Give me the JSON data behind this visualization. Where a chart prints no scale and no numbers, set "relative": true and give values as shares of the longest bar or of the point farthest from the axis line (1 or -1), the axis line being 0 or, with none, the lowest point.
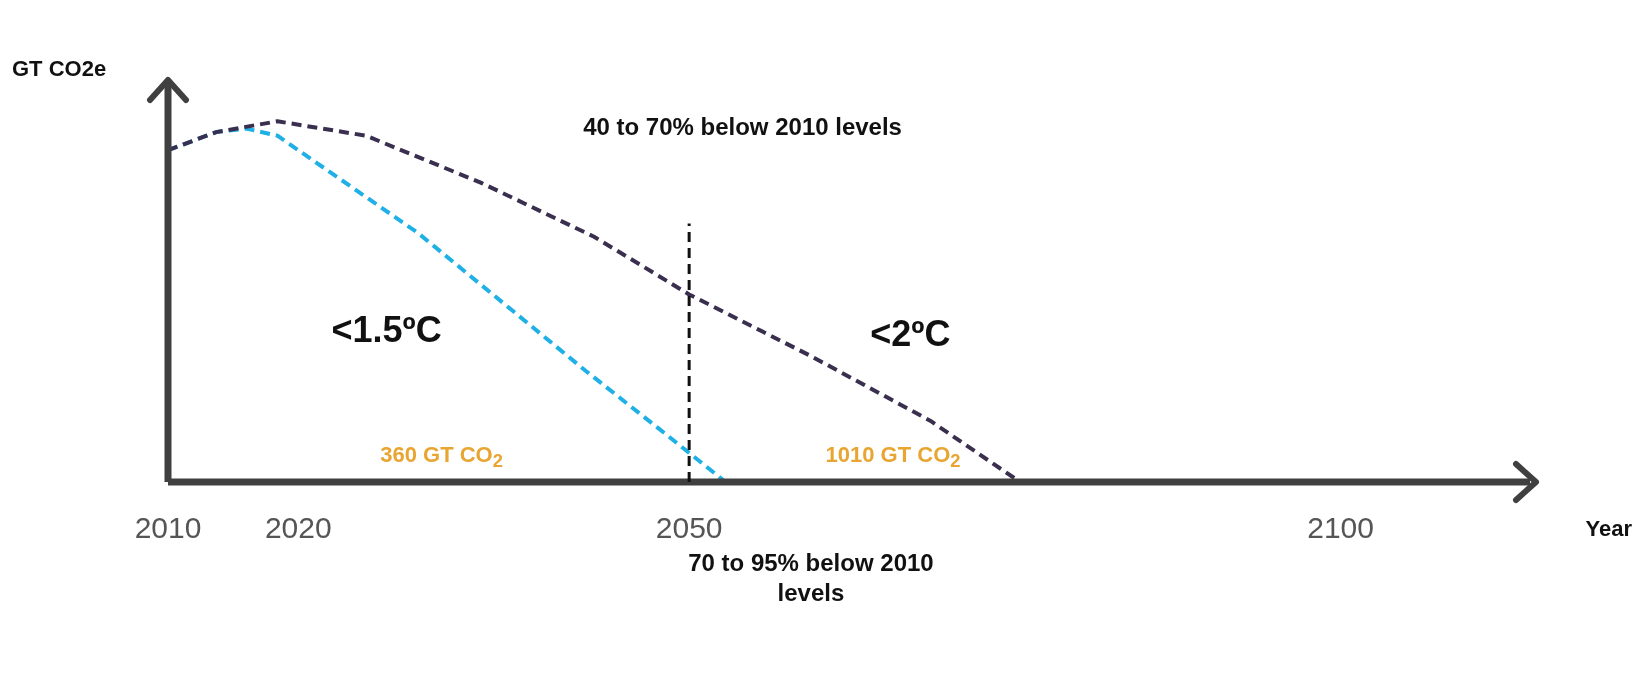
{
  "chart_data": {
    "type": "line",
    "relative": true,
    "xlabel": "Year",
    "ylabel": "GT CO2e",
    "x": [
      2010,
      2013.7,
      2018.4,
      2025.2,
      2034,
      2042.7,
      2050,
      2059.3,
      2068.5,
      2075.4
    ],
    "xlim": [
      2010,
      2115
    ],
    "xticks": [
      2010,
      2020,
      2050,
      2100
    ],
    "tick_labels": "x",
    "grid": false,
    "legend": false,
    "marker": "none",
    "line_style": "dashed",
    "series": [
      {
        "name": "<2ºC",
        "color": "#3a2f4f",
        "values": [
          0.92,
          0.97,
          1.0,
          0.96,
          0.83,
          0.68,
          0.52,
          0.35,
          0.17,
          0
        ]
      },
      {
        "name": "<1.5ºC",
        "color": "#1fb0e6",
        "x": [
          2010,
          2013.7,
          2016,
          2018.4,
          2022.8,
          2029.2,
          2035.6,
          2042,
          2047.6,
          2052.8
        ],
        "values": [
          0.92,
          0.97,
          0.98,
          0.96,
          0.85,
          0.69,
          0.5,
          0.31,
          0.15,
          0
        ]
      }
    ],
    "ref_lines": [
      {
        "axis": "x",
        "value": 2050,
        "label": null,
        "color": "#111111",
        "line_style": "dashed"
      }
    ],
    "annotations": [
      "40 to 70% below 2010 levels",
      "360 GT CO$_{2}$",
      "1010 GT CO$_{2}$",
      "70 to 95% below 2010 levels"
    ]
  }
}
